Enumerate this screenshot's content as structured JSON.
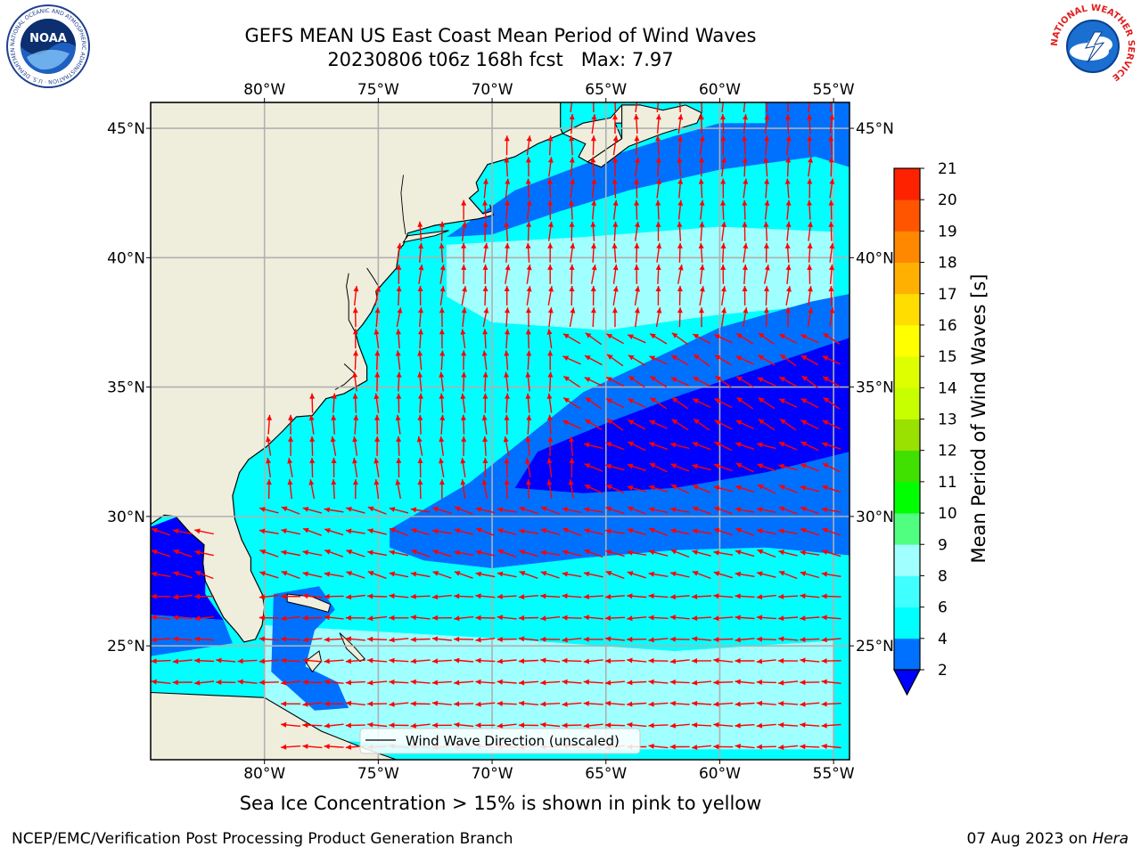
{
  "title": {
    "line1": "GEFS MEAN US East Coast Mean Period of Wind Waves",
    "line2": "20230806 t06z 168h fcst   Max: 7.97"
  },
  "logos": {
    "noaa_text": "NOAA",
    "noaa_ring": "NATIONAL OCEANIC AND ATMOSPHERIC ADMINISTRATION · U.S. DEPARTMENT OF COMMERCE",
    "nws_ring": "NATIONAL WEATHER SERVICE"
  },
  "map": {
    "lon_labels": [
      "80°W",
      "75°W",
      "70°W",
      "65°W",
      "60°W",
      "55°W"
    ],
    "lon_values": [
      -80,
      -75,
      -70,
      -65,
      -60,
      -55
    ],
    "lat_labels": [
      "45°N",
      "40°N",
      "35°N",
      "30°N",
      "25°N"
    ],
    "lat_values": [
      45,
      40,
      35,
      30,
      25
    ],
    "extent": {
      "lon": [
        -85,
        -54.3
      ],
      "lat": [
        20.6,
        46
      ]
    },
    "colors": {
      "land": "#efeedd",
      "arrow": "#ff0000",
      "coast": "#000000",
      "grid": "#b0b0b0"
    },
    "legend_label": "Wind Wave Direction (unscaled)"
  },
  "colorbar": {
    "label": "Mean Period of Wind Waves [s]",
    "ticks": [
      "2",
      "4",
      "6",
      "8",
      "9",
      "10",
      "11",
      "12",
      "13",
      "14",
      "15",
      "16",
      "17",
      "18",
      "19",
      "20",
      "21"
    ],
    "colors": [
      "#0070ff",
      "#00ffff",
      "#40ffff",
      "#a0ffff",
      "#50ff80",
      "#00ff00",
      "#40e000",
      "#9ae000",
      "#c8ff00",
      "#ddff00",
      "#ffff00",
      "#ffdd00",
      "#ffb000",
      "#ff8800",
      "#ff5500",
      "#ff2200"
    ],
    "under_color": "#0000ff"
  },
  "footer": {
    "note": "Sea Ice Concentration > 15% is shown in pink to yellow",
    "left": "NCEP/EMC/Verification Post Processing Product Generation Branch",
    "date": "07 Aug 2023 on",
    "machine": "Hera"
  }
}
